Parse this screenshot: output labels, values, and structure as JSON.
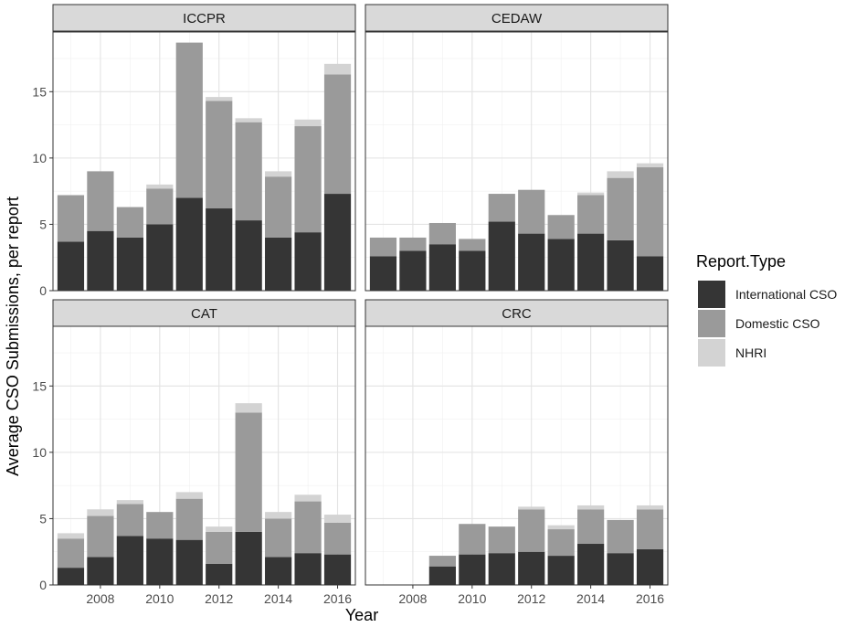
{
  "chart_data": {
    "type": "bar",
    "stacked": true,
    "xlabel": "Year",
    "ylabel": "Average CSO Submissions, per report",
    "x_ticks": [
      "2008",
      "2010",
      "2012",
      "2014",
      "2016"
    ],
    "y_ticks": [
      "0",
      "5",
      "10",
      "15"
    ],
    "ylim": [
      0,
      19.5
    ],
    "grid": true,
    "legend": {
      "title": "Report.Type",
      "position": "right",
      "entries": [
        "International CSO",
        "Domestic CSO",
        "NHRI"
      ]
    },
    "colors": {
      "International CSO": "#353535",
      "Domestic CSO": "#9a9a9a",
      "NHRI": "#d3d3d3"
    },
    "x": [
      2007,
      2008,
      2009,
      2010,
      2011,
      2012,
      2013,
      2014,
      2015,
      2016
    ],
    "panels": [
      {
        "title": "ICCPR",
        "series": [
          {
            "name": "International CSO",
            "values": [
              3.7,
              4.5,
              4.0,
              5.0,
              7.0,
              6.2,
              5.3,
              4.0,
              4.4,
              7.3
            ]
          },
          {
            "name": "Domestic CSO",
            "values": [
              3.5,
              4.5,
              2.3,
              2.7,
              11.7,
              8.1,
              7.4,
              4.6,
              8.0,
              9.0
            ]
          },
          {
            "name": "NHRI",
            "values": [
              0.0,
              0.0,
              0.0,
              0.3,
              0.0,
              0.3,
              0.3,
              0.4,
              0.5,
              0.8
            ]
          }
        ]
      },
      {
        "title": "CEDAW",
        "series": [
          {
            "name": "International CSO",
            "values": [
              2.6,
              3.0,
              3.5,
              3.0,
              5.2,
              4.3,
              3.9,
              4.3,
              3.8,
              2.6
            ]
          },
          {
            "name": "Domestic CSO",
            "values": [
              1.4,
              1.0,
              1.6,
              0.9,
              2.1,
              3.3,
              1.8,
              2.9,
              4.7,
              6.7
            ]
          },
          {
            "name": "NHRI",
            "values": [
              0.0,
              0.0,
              0.0,
              0.0,
              0.0,
              0.0,
              0.0,
              0.2,
              0.5,
              0.3
            ]
          }
        ]
      },
      {
        "title": "CAT",
        "series": [
          {
            "name": "International CSO",
            "values": [
              1.3,
              2.1,
              3.7,
              3.5,
              3.4,
              1.6,
              4.0,
              2.1,
              2.4,
              2.3
            ]
          },
          {
            "name": "Domestic CSO",
            "values": [
              2.2,
              3.1,
              2.4,
              2.0,
              3.1,
              2.4,
              9.0,
              2.9,
              3.9,
              2.4
            ]
          },
          {
            "name": "NHRI",
            "values": [
              0.4,
              0.5,
              0.3,
              0.0,
              0.5,
              0.4,
              0.7,
              0.5,
              0.5,
              0.6
            ]
          }
        ]
      },
      {
        "title": "CRC",
        "series": [
          {
            "name": "International CSO",
            "values": [
              0.0,
              0.0,
              1.4,
              2.3,
              2.4,
              2.5,
              2.2,
              3.1,
              2.4,
              2.7
            ]
          },
          {
            "name": "Domestic CSO",
            "values": [
              0.0,
              0.0,
              0.8,
              2.3,
              2.0,
              3.2,
              2.0,
              2.6,
              2.5,
              3.0
            ]
          },
          {
            "name": "NHRI",
            "values": [
              0.0,
              0.0,
              0.0,
              0.0,
              0.0,
              0.2,
              0.3,
              0.3,
              0.0,
              0.3
            ]
          }
        ]
      }
    ]
  }
}
